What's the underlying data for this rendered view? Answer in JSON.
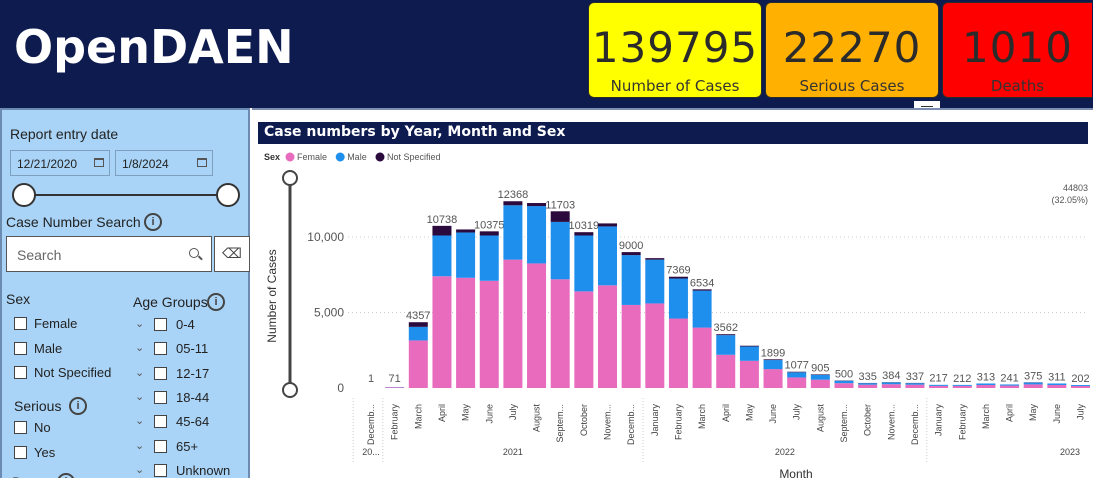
{
  "app": {
    "title": "OpenDAEN"
  },
  "cards": {
    "cases": {
      "value": "139795",
      "label": "Number of Cases",
      "color": "#ffff00"
    },
    "serious": {
      "value": "22270",
      "label": "Serious Cases",
      "color": "#ffb000"
    },
    "deaths": {
      "value": "1010",
      "label": "Deaths",
      "color": "#ff0000"
    }
  },
  "sidebar": {
    "report_entry_label": "Report entry date",
    "date_start": "12/21/2020",
    "date_end": "1/8/2024",
    "case_search_label": "Case Number Search",
    "search_placeholder": "Search",
    "sex_label": "Sex",
    "sex_options": [
      "Female",
      "Male",
      "Not Specified"
    ],
    "serious_label": "Serious",
    "serious_options": [
      "No",
      "Yes"
    ],
    "age_label": "Age Groups",
    "age_options": [
      "0-4",
      "05-11",
      "12-17",
      "18-44",
      "45-64",
      "65+",
      "Unknown"
    ],
    "info_icon": "i"
  },
  "chart_panel": {
    "title": "Case numbers by Year, Month and Sex",
    "legend_title": "Sex",
    "icons": [
      "filter-icon",
      "calendar-icon",
      "search-icon",
      "eraser-icon",
      "chevron-down-icon",
      "info-icon"
    ]
  },
  "chart_data": {
    "type": "bar",
    "stacked": true,
    "title": "Case numbers by Year, Month and Sex",
    "xlabel": "Month",
    "ylabel": "Number of Cases",
    "ylim": [
      0,
      13500
    ],
    "yticks": [
      0,
      5000,
      10000
    ],
    "ytick_labels": [
      "0",
      "5,000",
      "10,000"
    ],
    "grid": true,
    "legend_position": "top-left",
    "categories": [
      "Decemb...",
      "February",
      "March",
      "April",
      "May",
      "June",
      "July",
      "August",
      "Septem...",
      "October",
      "Novem...",
      "Decemb...",
      "January",
      "February",
      "March",
      "April",
      "May",
      "June",
      "July",
      "August",
      "Septem...",
      "October",
      "Novem...",
      "Decemb...",
      "January",
      "February",
      "March",
      "April",
      "May",
      "June",
      "July"
    ],
    "years": [
      {
        "label": "20...",
        "span": 1
      },
      {
        "label": "2021",
        "span": 11
      },
      {
        "label": "2022",
        "span": 12
      },
      {
        "label": "2023",
        "span": 7
      }
    ],
    "totals": [
      1,
      71,
      4357,
      10738,
      null,
      10375,
      12368,
      null,
      11703,
      10319,
      null,
      9000,
      null,
      7369,
      6534,
      3562,
      null,
      1899,
      1077,
      905,
      500,
      335,
      384,
      337,
      217,
      212,
      313,
      241,
      375,
      311,
      202
    ],
    "series": [
      {
        "name": "Female",
        "color": "#e86bbd",
        "values": [
          1,
          50,
          3150,
          7400,
          7300,
          7100,
          8500,
          8250,
          7200,
          6400,
          6800,
          5500,
          5600,
          4600,
          4000,
          2200,
          1800,
          1250,
          700,
          550,
          320,
          220,
          250,
          220,
          140,
          140,
          200,
          160,
          240,
          200,
          130
        ]
      },
      {
        "name": "Male",
        "color": "#1f8fee",
        "values": [
          0,
          18,
          900,
          2700,
          3000,
          3000,
          3600,
          3800,
          3800,
          3700,
          3900,
          3300,
          2900,
          2650,
          2450,
          1300,
          950,
          600,
          340,
          320,
          160,
          100,
          120,
          100,
          70,
          65,
          100,
          75,
          120,
          100,
          65
        ]
      },
      {
        "name": "Not Specified",
        "color": "#2b0a3d",
        "values": [
          0,
          3,
          307,
          638,
          200,
          275,
          268,
          200,
          703,
          219,
          200,
          200,
          100,
          119,
          84,
          62,
          50,
          49,
          37,
          35,
          20,
          15,
          14,
          17,
          7,
          7,
          13,
          6,
          15,
          11,
          7
        ]
      }
    ],
    "annotation": {
      "value": "44803",
      "percent": "(32.05%)"
    }
  }
}
